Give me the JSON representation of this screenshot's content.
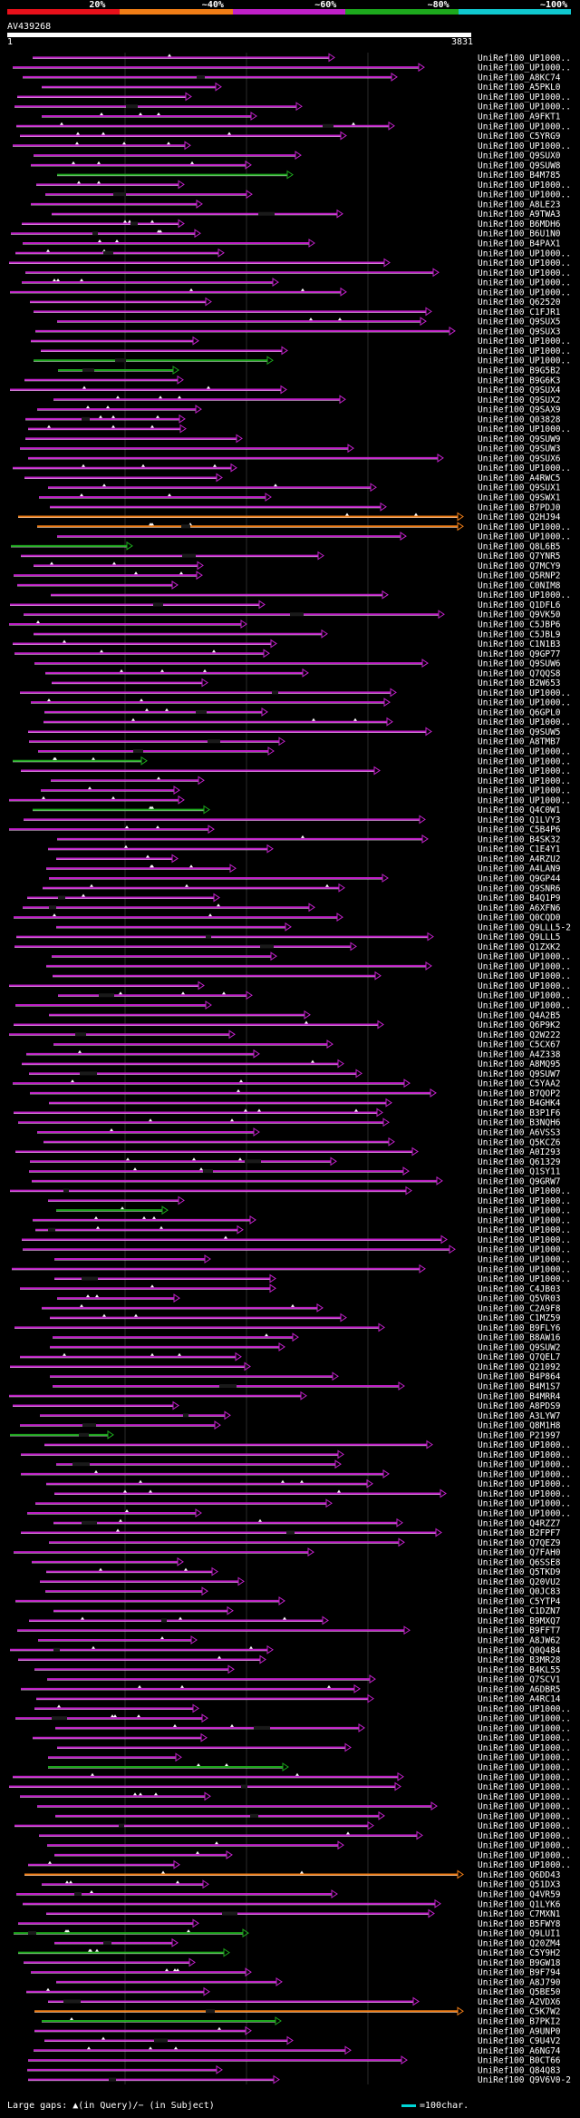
{
  "legend": {
    "segments": [
      {
        "label": "20%",
        "color": "#e8101a"
      },
      {
        "label": "~40%",
        "color": "#f07d16"
      },
      {
        "label": "~60%",
        "color": "#c020c8"
      },
      {
        "label": "~80%",
        "color": "#1da81d"
      },
      {
        "label": "~100%",
        "color": "#10c8d0"
      }
    ]
  },
  "query": {
    "id": "AV439268",
    "start": "1",
    "end": "3831"
  },
  "hits": [
    "UniRef100_UP1000..",
    "UniRef100_UP1000..",
    "UniRef100_A8KC74",
    "UniRef100_A5PKL0",
    "UniRef100_UP1000..",
    "UniRef100_UP1000..",
    "UniRef100_A9FKT1",
    "UniRef100_UP1000..",
    "UniRef100_C5YRG9",
    "UniRef100_UP1000..",
    "UniRef100_Q9SUX0",
    "UniRef100_Q9SUW8",
    "UniRef100_B4M785",
    "UniRef100_UP1000..",
    "UniRef100_UP1000..",
    "UniRef100_A8LE23",
    "UniRef100_A9TWA3",
    "UniRef100_B6MDH6",
    "UniRef100_B6U1N0",
    "UniRef100_B4PAX1",
    "UniRef100_UP1000..",
    "UniRef100_UP1000..",
    "UniRef100_UP1000..",
    "UniRef100_UP1000..",
    "UniRef100_UP1000..",
    "UniRef100_Q62520",
    "UniRef100_C1FJR1",
    "UniRef100_Q9SUX5",
    "UniRef100_Q9SUX3",
    "UniRef100_UP1000..",
    "UniRef100_UP1000..",
    "UniRef100_UP1000..",
    "UniRef100_B9G5B2",
    "UniRef100_B9G6K3",
    "UniRef100_Q9SUX4",
    "UniRef100_Q9SUX2",
    "UniRef100_Q9SAX9",
    "UniRef100_Q03828",
    "UniRef100_UP1000..",
    "UniRef100_Q9SUW9",
    "UniRef100_Q9SUW3",
    "UniRef100_Q9SUX6",
    "UniRef100_UP1000..",
    "UniRef100_A4RWC5",
    "UniRef100_Q9SUX1",
    "UniRef100_Q9SWX1",
    "UniRef100_B7PDJ0",
    "UniRef100_Q2HJ94",
    "UniRef100_UP1000..",
    "UniRef100_UP1000..",
    "UniRef100_Q8L6B5",
    "UniRef100_Q7YNR5",
    "UniRef100_Q7MCY9",
    "UniRef100_Q5RNP2",
    "UniRef100_C0NIM8",
    "UniRef100_UP1000..",
    "UniRef100_Q1DFL6",
    "UniRef100_Q9VK50",
    "UniRef100_C5JBP6",
    "UniRef100_C5JBL9",
    "UniRef100_C1N1B3",
    "UniRef100_Q9GP77",
    "UniRef100_Q9SUW6",
    "UniRef100_Q7QQS8",
    "UniRef100_B2W653",
    "UniRef100_UP1000..",
    "UniRef100_UP1000..",
    "UniRef100_Q6GPL0",
    "UniRef100_UP1000..",
    "UniRef100_Q9SUW5",
    "UniRef100_A8TMB7",
    "UniRef100_UP1000..",
    "UniRef100_UP1000..",
    "UniRef100_UP1000..",
    "UniRef100_UP1000..",
    "UniRef100_UP1000..",
    "UniRef100_UP1000..",
    "UniRef100_Q4C0W1",
    "UniRef100_Q1LVY3",
    "UniRef100_C5B4P6",
    "UniRef100_B4SK32",
    "UniRef100_C1E4Y1",
    "UniRef100_A4RZU2",
    "UniRef100_A4LAN9",
    "UniRef100_Q9GP44",
    "UniRef100_Q9SNR6",
    "UniRef100_B4Q1P9",
    "UniRef100_A6XFN6",
    "UniRef100_Q0CQD0",
    "UniRef100_Q9LLL5-2",
    "UniRef100_Q9LLL5",
    "UniRef100_Q1ZXK2",
    "UniRef100_UP1000..",
    "UniRef100_UP1000..",
    "UniRef100_UP1000..",
    "UniRef100_UP1000..",
    "UniRef100_UP1000..",
    "UniRef100_UP1000..",
    "UniRef100_Q4A2B5",
    "UniRef100_Q6P9K2",
    "UniRef100_Q2W222",
    "UniRef100_C5CX67",
    "UniRef100_A4Z338",
    "UniRef100_A8MQ95",
    "UniRef100_Q9SUW7",
    "UniRef100_C5YAA2",
    "UniRef100_B7QOP2",
    "UniRef100_B4GHK4",
    "UniRef100_B3P1F6",
    "UniRef100_B3NQH6",
    "UniRef100_A6VSS3",
    "UniRef100_Q5KCZ6",
    "UniRef100_A0I293",
    "UniRef100_Q61329",
    "UniRef100_Q1SY11",
    "UniRef100_Q9GRW7",
    "UniRef100_UP1000..",
    "UniRef100_UP1000..",
    "UniRef100_UP1000..",
    "UniRef100_UP1000..",
    "UniRef100_UP1000..",
    "UniRef100_UP1000..",
    "UniRef100_UP1000..",
    "UniRef100_UP1000..",
    "UniRef100_UP1000..",
    "UniRef100_UP1000..",
    "UniRef100_C4JB03",
    "UniRef100_Q5VR03",
    "UniRef100_C2A9F8",
    "UniRef100_C1MZ59",
    "UniRef100_B9FLY6",
    "UniRef100_B8AW16",
    "UniRef100_Q9SUW2",
    "UniRef100_Q7QEL7",
    "UniRef100_Q21092",
    "UniRef100_B4P864",
    "UniRef100_B4M1S7",
    "UniRef100_B4MRR4",
    "UniRef100_A8PDS9",
    "UniRef100_A3LYW7",
    "UniRef100_Q8M1H8",
    "UniRef100_P21997",
    "UniRef100_UP1000..",
    "UniRef100_UP1000..",
    "UniRef100_UP1000..",
    "UniRef100_UP1000..",
    "UniRef100_UP1000..",
    "UniRef100_UP1000..",
    "UniRef100_UP1000..",
    "UniRef100_UP1000..",
    "UniRef100_Q4RZZ7",
    "UniRef100_B2FPF7",
    "UniRef100_Q7QEZ9",
    "UniRef100_Q7FAH0",
    "UniRef100_Q6SSE8",
    "UniRef100_Q5TKD9",
    "UniRef100_Q20VU2",
    "UniRef100_Q0JC83",
    "UniRef100_C5YTP4",
    "UniRef100_C1DZN7",
    "UniRef100_B9MXQ7",
    "UniRef100_B9FFT7",
    "UniRef100_A8JW62",
    "UniRef100_Q0Q484",
    "UniRef100_B3MR28",
    "UniRef100_B4KL55",
    "UniRef100_Q7SCV1",
    "UniRef100_A6DBR5",
    "UniRef100_A4RC14",
    "UniRef100_UP1000..",
    "UniRef100_UP1000..",
    "UniRef100_UP1000..",
    "UniRef100_UP1000..",
    "UniRef100_UP1000..",
    "UniRef100_UP1000..",
    "UniRef100_UP1000..",
    "UniRef100_UP1000..",
    "UniRef100_UP1000..",
    "UniRef100_UP1000..",
    "UniRef100_UP1000..",
    "UniRef100_UP1000..",
    "UniRef100_UP1000..",
    "UniRef100_UP1000..",
    "UniRef100_UP1000..",
    "UniRef100_UP1000..",
    "UniRef100_UP1000..",
    "UniRef100_Q6DD43",
    "UniRef100_Q51DX3",
    "UniRef100_Q4VR59",
    "UniRef100_Q1LYK6",
    "UniRef100_C7MXN1",
    "UniRef100_B5FWY8",
    "UniRef100_Q9LUI1",
    "UniRef100_Q20ZM4",
    "UniRef100_C5Y9H2",
    "UniRef100_B9GW18",
    "UniRef100_B9F794",
    "UniRef100_A8J790",
    "UniRef100_Q5BE50",
    "UniRef100_A2VDX6",
    "UniRef100_C5K7W2",
    "UniRef100_B7PKI2",
    "UniRef100_A9UNP0",
    "UniRef100_C9U4V2",
    "UniRef100_A6NG74",
    "UniRef100_B0CT66",
    "UniRef100_Q84Q83",
    "UniRef100_Q9V6V0-2"
  ],
  "footer": {
    "gaps_label": "Large gaps: ▲(in Query)/− (in Subject)",
    "scale_label": "=100char."
  }
}
